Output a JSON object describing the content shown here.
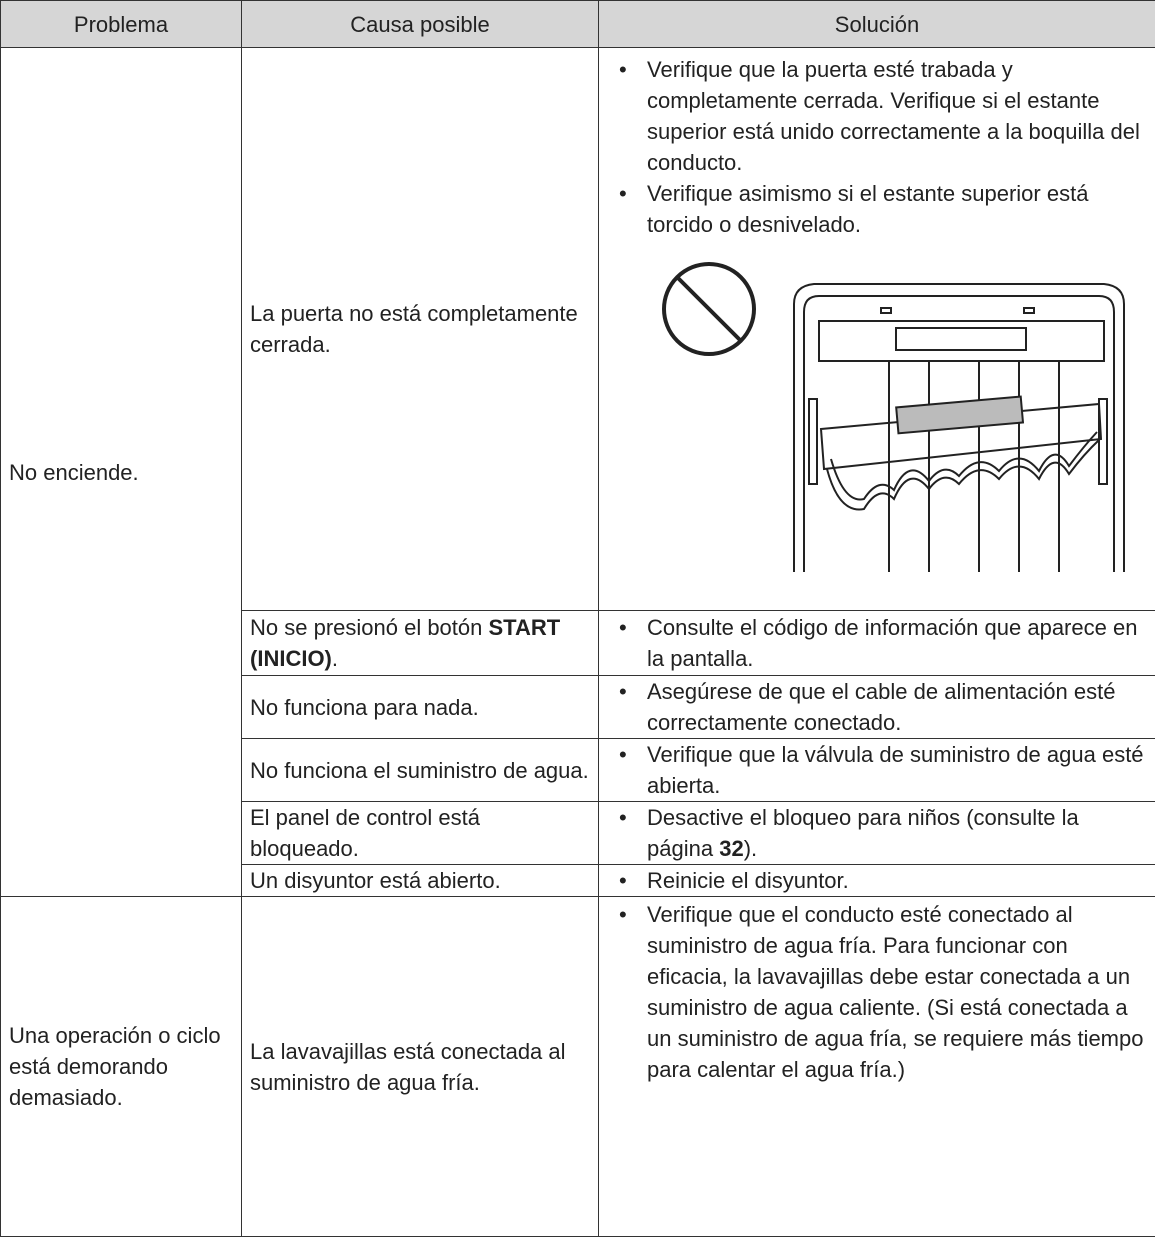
{
  "table": {
    "header": [
      "Problema",
      "Causa posible",
      "Solución"
    ],
    "rows": [
      {
        "problem": "No enciende.",
        "items": [
          {
            "cause": "La puerta no está completamente cerrada.",
            "solutions": [
              "Verifique que la puerta esté trabada y completamente cerrada. Verifique si el estante superior está unido correctamente a la boquilla del conducto.",
              "Verifique asimismo si el estante superior está torcido o desnivelado."
            ]
          },
          {
            "cause": [
              "No se presionó el botón",
              "START (INICIO)",
              "."
            ],
            "solutions": [
              "Consulte el código de información que aparece en la pantalla."
            ]
          },
          {
            "cause": "No funciona para nada.",
            "solutions": [
              "Asegúrese de que el cable de alimentación esté correctamente conectado."
            ]
          },
          {
            "cause": "No funciona el suministro de agua.",
            "solutions": [
              "Verifique que la válvula de suministro de agua esté abierta."
            ]
          },
          {
            "cause": "El panel de control está bloqueado.",
            "solutions": [
              [
                "Desactive el bloqueo para niños (consulte la página",
                "32",
                ")."
              ]
            ]
          },
          {
            "cause": "Un disyuntor está abierto.",
            "solutions": [
              "Reinicie el disyuntor."
            ]
          }
        ]
      },
      {
        "problem": "Una operación o ciclo está demorando demasiado.",
        "items": [
          {
            "cause": "La lavavajillas está conectada al suministro de agua fría.",
            "solutions": [
              "Verifique que el conducto esté conectado al suministro de agua fría. Para funcionar con eficacia, la lavavajillas debe estar conectada a un suministro de agua caliente. (Si está conectada a un suministro de agua fría, se requiere más tiempo para calentar el agua fría.)"
            ]
          }
        ]
      }
    ]
  }
}
